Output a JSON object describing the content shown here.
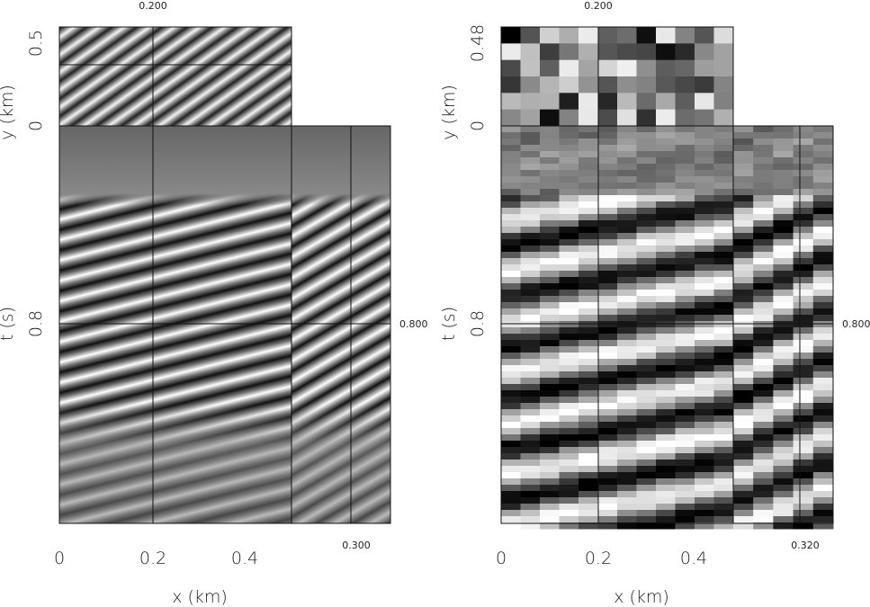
{
  "panels": [
    {
      "top_label": "0.200",
      "y_axis": {
        "ticks": [
          "0.5",
          "0"
        ],
        "label": "y (km)"
      },
      "t_axis": {
        "ticks": [
          "0.8"
        ],
        "label": "t (s)"
      },
      "x_axis": {
        "ticks": [
          "0",
          "0.2",
          "0.4"
        ],
        "label": "x (km)"
      },
      "side_time_label": "0.800",
      "side_x_label": "0.300"
    },
    {
      "top_label": "0.200",
      "y_axis": {
        "ticks": [
          "0.48",
          "0"
        ],
        "label": "y (km)"
      },
      "t_axis": {
        "ticks": [
          "0.8"
        ],
        "label": "t (s)"
      },
      "x_axis": {
        "ticks": [
          "0",
          "0.2",
          "0.4"
        ],
        "label": "x (km)"
      },
      "side_time_label": "0.800",
      "side_x_label": "0.320"
    }
  ]
}
